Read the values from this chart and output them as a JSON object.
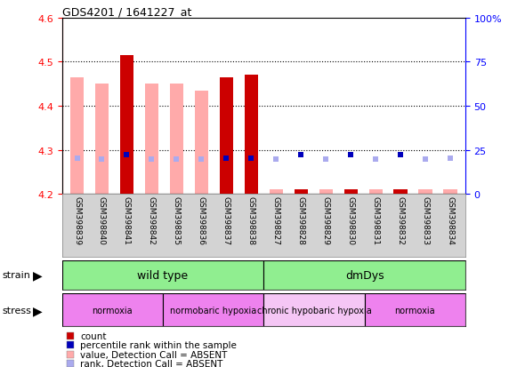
{
  "title": "GDS4201 / 1641227_at",
  "samples": [
    "GSM398839",
    "GSM398840",
    "GSM398841",
    "GSM398842",
    "GSM398835",
    "GSM398836",
    "GSM398837",
    "GSM398838",
    "GSM398827",
    "GSM398828",
    "GSM398829",
    "GSM398830",
    "GSM398831",
    "GSM398832",
    "GSM398833",
    "GSM398834"
  ],
  "ylim_left": [
    4.2,
    4.6
  ],
  "ylim_right": [
    0,
    100
  ],
  "yticks_left": [
    4.2,
    4.3,
    4.4,
    4.5,
    4.6
  ],
  "yticks_right": [
    0,
    25,
    50,
    75,
    100
  ],
  "value_absent": [
    4.465,
    4.45,
    null,
    4.45,
    4.45,
    4.435,
    4.465,
    null,
    4.21,
    null,
    4.21,
    null,
    4.21,
    null,
    4.21,
    4.21
  ],
  "value_present": [
    null,
    null,
    4.515,
    null,
    null,
    null,
    4.465,
    4.47,
    null,
    4.21,
    null,
    4.21,
    null,
    4.21,
    null,
    null
  ],
  "rank_absent": [
    20.5,
    20.0,
    null,
    20.0,
    20.0,
    20.0,
    20.2,
    null,
    20.0,
    null,
    20.0,
    null,
    20.0,
    null,
    20.0,
    20.2
  ],
  "rank_present": [
    null,
    null,
    22.5,
    null,
    null,
    null,
    20.5,
    20.5,
    null,
    22.5,
    null,
    22.5,
    null,
    22.5,
    null,
    null
  ],
  "n": 16,
  "strain_groups": [
    {
      "label": "wild type",
      "start": 0,
      "end": 8,
      "color": "#90EE90"
    },
    {
      "label": "dmDys",
      "start": 8,
      "end": 16,
      "color": "#90EE90"
    }
  ],
  "stress_groups": [
    {
      "label": "normoxia",
      "start": 0,
      "end": 4,
      "color": "#EE82EE"
    },
    {
      "label": "normobaric hypoxia",
      "start": 4,
      "end": 8,
      "color": "#EE82EE"
    },
    {
      "label": "chronic hypobaric hypoxia",
      "start": 8,
      "end": 12,
      "color": "#F5C6F5"
    },
    {
      "label": "normoxia",
      "start": 12,
      "end": 16,
      "color": "#EE82EE"
    }
  ],
  "color_count": "#cc0000",
  "color_rank_present": "#0000bb",
  "color_value_absent": "#ffaaaa",
  "color_rank_absent": "#aaaaee",
  "bg_color": "#d3d3d3",
  "gridline_y": [
    4.3,
    4.4,
    4.5
  ],
  "legend_items": [
    {
      "color": "#cc0000",
      "label": "count"
    },
    {
      "color": "#0000bb",
      "label": "percentile rank within the sample"
    },
    {
      "color": "#ffaaaa",
      "label": "value, Detection Call = ABSENT"
    },
    {
      "color": "#aaaaee",
      "label": "rank, Detection Call = ABSENT"
    }
  ]
}
